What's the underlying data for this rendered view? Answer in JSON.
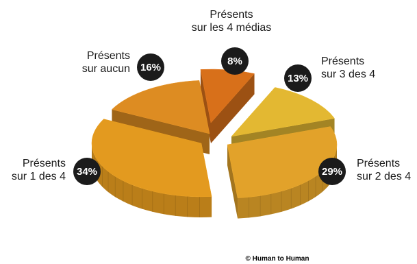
{
  "chart_data": {
    "type": "pie",
    "style": "exploded-3d",
    "legend": "none",
    "slices": [
      {
        "label_lines": [
          "Présents",
          "sur aucun"
        ],
        "value": 16,
        "value_label": "16%",
        "color": "#dd8c22"
      },
      {
        "label_lines": [
          "Présents",
          "sur les 4 médias"
        ],
        "value": 8,
        "value_label": "8%",
        "color": "#d8701a"
      },
      {
        "label_lines": [
          "Présents",
          "sur 3 des 4"
        ],
        "value": 13,
        "value_label": "13%",
        "color": "#e3b832"
      },
      {
        "label_lines": [
          "Présents",
          "sur 2 des 4"
        ],
        "value": 29,
        "value_label": "29%",
        "color": "#e2a22a"
      },
      {
        "label_lines": [
          "Présents",
          "sur 1 des 4"
        ],
        "value": 34,
        "value_label": "34%",
        "color": "#e39a1f"
      }
    ],
    "badge_color": "#1b1b1b"
  },
  "credit": "© Human to Human"
}
